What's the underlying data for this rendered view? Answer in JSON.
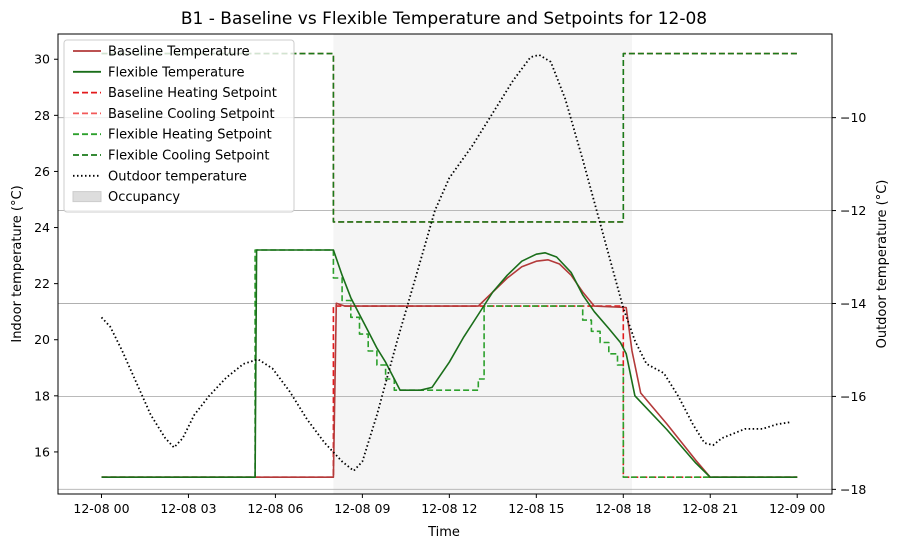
{
  "chart_data": {
    "type": "line",
    "title": "B1 - Baseline vs Flexible Temperature and Setpoints for 12-08",
    "xlabel": "Time",
    "ylabel_left": "Indoor temperature (°C)",
    "ylabel_right": "Outdoor temperature (°C)",
    "xlim": [
      -1.5,
      25.2
    ],
    "ylim_left": [
      14.5,
      30.9
    ],
    "ylim_right": [
      -18.1,
      -8.2
    ],
    "x_ticks": [
      {
        "x": 0,
        "label": "12-08 00"
      },
      {
        "x": 3,
        "label": "12-08 03"
      },
      {
        "x": 6,
        "label": "12-08 06"
      },
      {
        "x": 9,
        "label": "12-08 09"
      },
      {
        "x": 12,
        "label": "12-08 12"
      },
      {
        "x": 15,
        "label": "12-08 15"
      },
      {
        "x": 18,
        "label": "12-08 18"
      },
      {
        "x": 21,
        "label": "12-08 21"
      },
      {
        "x": 24,
        "label": "12-09 00"
      }
    ],
    "y_ticks_left": [
      16,
      18,
      20,
      22,
      24,
      26,
      28,
      30
    ],
    "y_ticks_right": [
      -18,
      -16,
      -14,
      -12,
      -10
    ],
    "grid": "horizontal gridlines at right-axis ticks",
    "legend_position": "upper-left",
    "occupancy": {
      "start": 8.0,
      "end": 18.3,
      "label": "Occupancy",
      "color": "#dddddd"
    },
    "series": [
      {
        "name": "Baseline Heating Setpoint",
        "axis": "left",
        "style": "dashed",
        "color": "#e31a1c",
        "points": [
          [
            0,
            15.1
          ],
          [
            8,
            15.1
          ],
          [
            8,
            21.2
          ],
          [
            18,
            21.2
          ],
          [
            18,
            15.1
          ],
          [
            24,
            15.1
          ]
        ]
      },
      {
        "name": "Baseline Cooling Setpoint",
        "axis": "left",
        "style": "dashed",
        "color": "#f25a5a",
        "points": [
          [
            0,
            30.2
          ],
          [
            8,
            30.2
          ],
          [
            8,
            24.2
          ],
          [
            18,
            24.2
          ],
          [
            18,
            30.2
          ],
          [
            24,
            30.2
          ]
        ]
      },
      {
        "name": "Flexible Heating Setpoint",
        "axis": "left",
        "style": "dashed",
        "color": "#2ca02c",
        "points": [
          [
            0,
            15.1
          ],
          [
            5.3,
            15.1
          ],
          [
            5.3,
            23.2
          ],
          [
            8,
            23.2
          ],
          [
            8,
            22.2
          ],
          [
            8.3,
            22.2
          ],
          [
            8.3,
            21.4
          ],
          [
            8.6,
            21.4
          ],
          [
            8.6,
            20.8
          ],
          [
            8.9,
            20.8
          ],
          [
            8.9,
            20.2
          ],
          [
            9.2,
            20.2
          ],
          [
            9.2,
            19.6
          ],
          [
            9.5,
            19.6
          ],
          [
            9.5,
            19.1
          ],
          [
            9.8,
            19.1
          ],
          [
            9.8,
            18.6
          ],
          [
            10.1,
            18.6
          ],
          [
            10.1,
            18.2
          ],
          [
            13,
            18.2
          ],
          [
            13,
            18.6
          ],
          [
            13.2,
            18.6
          ],
          [
            13.2,
            21.2
          ],
          [
            16.6,
            21.2
          ],
          [
            16.6,
            20.7
          ],
          [
            16.9,
            20.7
          ],
          [
            16.9,
            20.3
          ],
          [
            17.2,
            20.3
          ],
          [
            17.2,
            19.9
          ],
          [
            17.5,
            19.9
          ],
          [
            17.5,
            19.5
          ],
          [
            17.8,
            19.5
          ],
          [
            17.8,
            19.1
          ],
          [
            18,
            19.1
          ],
          [
            18,
            15.1
          ],
          [
            24,
            15.1
          ]
        ]
      },
      {
        "name": "Flexible Cooling Setpoint",
        "axis": "left",
        "style": "dashed",
        "color": "#1a7a1a",
        "points": [
          [
            0,
            30.2
          ],
          [
            8,
            30.2
          ],
          [
            8,
            24.2
          ],
          [
            18,
            24.2
          ],
          [
            18,
            30.2
          ],
          [
            24,
            30.2
          ]
        ]
      },
      {
        "name": "Baseline Temperature",
        "axis": "left",
        "style": "solid",
        "color": "#b33a3a",
        "points": [
          [
            0,
            15.1
          ],
          [
            8,
            15.1
          ],
          [
            8.1,
            21.3
          ],
          [
            8.4,
            21.2
          ],
          [
            13,
            21.2
          ],
          [
            13.5,
            21.7
          ],
          [
            14,
            22.2
          ],
          [
            14.5,
            22.6
          ],
          [
            15,
            22.8
          ],
          [
            15.4,
            22.85
          ],
          [
            15.8,
            22.7
          ],
          [
            16.2,
            22.3
          ],
          [
            16.6,
            21.7
          ],
          [
            17,
            21.2
          ],
          [
            18.1,
            21.15
          ],
          [
            18.3,
            19.6
          ],
          [
            18.6,
            18.1
          ],
          [
            19.5,
            17.0
          ],
          [
            20.5,
            15.7
          ],
          [
            21,
            15.1
          ],
          [
            24,
            15.1
          ]
        ]
      },
      {
        "name": "Flexible Temperature",
        "axis": "left",
        "style": "solid",
        "color": "#1a6e1a",
        "points": [
          [
            0,
            15.1
          ],
          [
            5.3,
            15.1
          ],
          [
            5.35,
            23.2
          ],
          [
            8,
            23.2
          ],
          [
            8.3,
            22.3
          ],
          [
            8.6,
            21.5
          ],
          [
            8.9,
            20.9
          ],
          [
            9.2,
            20.3
          ],
          [
            9.5,
            19.7
          ],
          [
            9.8,
            19.2
          ],
          [
            10.1,
            18.6
          ],
          [
            10.3,
            18.2
          ],
          [
            11,
            18.2
          ],
          [
            11.4,
            18.3
          ],
          [
            12,
            19.2
          ],
          [
            12.5,
            20.1
          ],
          [
            13,
            20.9
          ],
          [
            13.5,
            21.7
          ],
          [
            14,
            22.3
          ],
          [
            14.5,
            22.8
          ],
          [
            15,
            23.05
          ],
          [
            15.3,
            23.1
          ],
          [
            15.7,
            22.95
          ],
          [
            16.2,
            22.4
          ],
          [
            16.6,
            21.6
          ],
          [
            17,
            21.0
          ],
          [
            17.5,
            20.4
          ],
          [
            17.9,
            19.9
          ],
          [
            18.1,
            19.5
          ],
          [
            18.4,
            18.0
          ],
          [
            19.5,
            16.8
          ],
          [
            20.5,
            15.6
          ],
          [
            21,
            15.1
          ],
          [
            24,
            15.1
          ]
        ]
      },
      {
        "name": "Outdoor temperature",
        "axis": "right",
        "style": "dotted",
        "color": "#000000",
        "points": [
          [
            0,
            -14.3
          ],
          [
            0.3,
            -14.5
          ],
          [
            0.7,
            -15.0
          ],
          [
            1.2,
            -15.7
          ],
          [
            1.7,
            -16.4
          ],
          [
            2.2,
            -16.9
          ],
          [
            2.5,
            -17.1
          ],
          [
            2.8,
            -16.9
          ],
          [
            3.2,
            -16.4
          ],
          [
            3.7,
            -16.0
          ],
          [
            4.3,
            -15.6
          ],
          [
            4.9,
            -15.3
          ],
          [
            5.4,
            -15.2
          ],
          [
            5.9,
            -15.4
          ],
          [
            6.5,
            -15.9
          ],
          [
            7.1,
            -16.5
          ],
          [
            7.7,
            -17.0
          ],
          [
            8.3,
            -17.4
          ],
          [
            8.7,
            -17.6
          ],
          [
            9.0,
            -17.4
          ],
          [
            9.5,
            -16.4
          ],
          [
            10.2,
            -14.8
          ],
          [
            10.9,
            -13.3
          ],
          [
            11.5,
            -12.0
          ],
          [
            12.0,
            -11.3
          ],
          [
            12.8,
            -10.6
          ],
          [
            13.5,
            -9.9
          ],
          [
            14.2,
            -9.2
          ],
          [
            14.8,
            -8.7
          ],
          [
            15.1,
            -8.65
          ],
          [
            15.5,
            -8.8
          ],
          [
            16.0,
            -9.6
          ],
          [
            16.6,
            -10.9
          ],
          [
            17.3,
            -12.5
          ],
          [
            18.0,
            -14.1
          ],
          [
            18.4,
            -14.8
          ],
          [
            18.8,
            -15.3
          ],
          [
            19.4,
            -15.5
          ],
          [
            19.9,
            -16.0
          ],
          [
            20.4,
            -16.6
          ],
          [
            20.8,
            -17.0
          ],
          [
            21.1,
            -17.05
          ],
          [
            21.4,
            -16.9
          ],
          [
            21.8,
            -16.8
          ],
          [
            22.2,
            -16.7
          ],
          [
            22.8,
            -16.7
          ],
          [
            23.3,
            -16.6
          ],
          [
            23.8,
            -16.55
          ]
        ]
      }
    ],
    "legend": [
      {
        "label": "Baseline Temperature",
        "color": "#b33a3a",
        "style": "solid"
      },
      {
        "label": "Flexible Temperature",
        "color": "#1a6e1a",
        "style": "solid"
      },
      {
        "label": "Baseline Heating Setpoint",
        "color": "#e31a1c",
        "style": "dashed"
      },
      {
        "label": "Baseline Cooling Setpoint",
        "color": "#f25a5a",
        "style": "dashed"
      },
      {
        "label": "Flexible Heating Setpoint",
        "color": "#2ca02c",
        "style": "dashed"
      },
      {
        "label": "Flexible Cooling Setpoint",
        "color": "#1a7a1a",
        "style": "dashed"
      },
      {
        "label": "Outdoor temperature",
        "color": "#000000",
        "style": "dotted"
      },
      {
        "label": "Occupancy",
        "color": "#dddddd",
        "style": "patch"
      }
    ]
  }
}
